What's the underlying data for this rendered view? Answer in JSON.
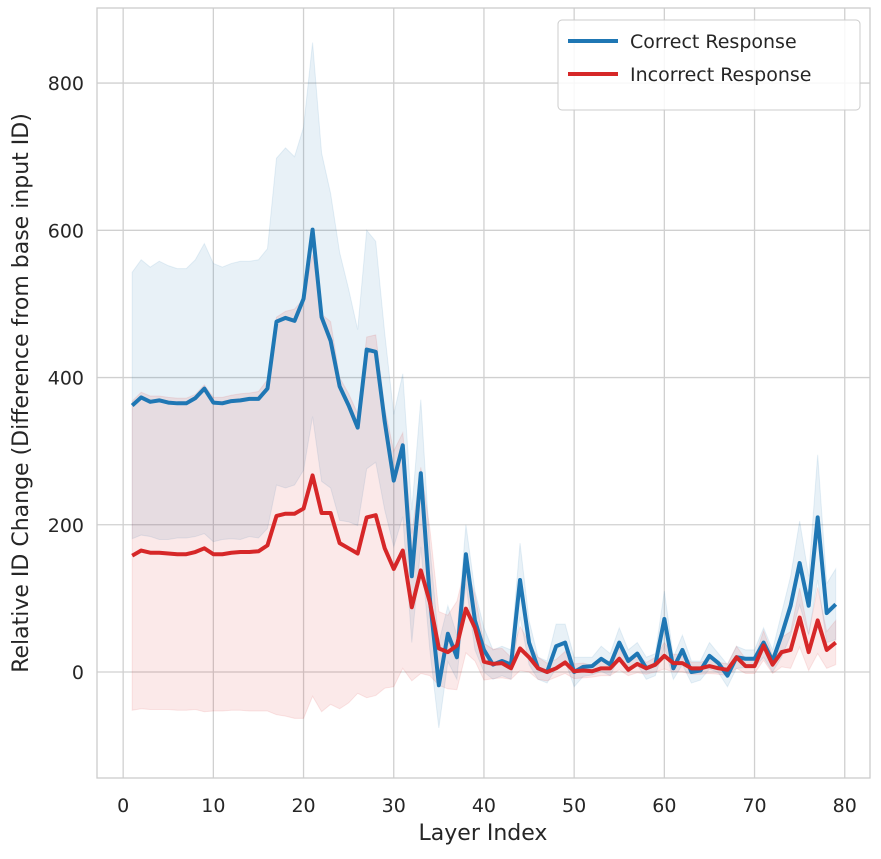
{
  "chart_data": {
    "type": "line",
    "xlabel": "Layer Index",
    "ylabel": "Relative ID Change (Difference from base input ID)",
    "x": [
      1,
      2,
      3,
      4,
      5,
      6,
      7,
      8,
      9,
      10,
      11,
      12,
      13,
      14,
      15,
      16,
      17,
      18,
      19,
      20,
      21,
      22,
      23,
      24,
      25,
      26,
      27,
      28,
      29,
      30,
      31,
      32,
      33,
      34,
      35,
      36,
      37,
      38,
      39,
      40,
      41,
      42,
      43,
      44,
      45,
      46,
      47,
      48,
      49,
      50,
      51,
      52,
      53,
      54,
      55,
      56,
      57,
      58,
      59,
      60,
      61,
      62,
      63,
      64,
      65,
      66,
      67,
      68,
      69,
      70,
      71,
      72,
      73,
      74,
      75,
      76,
      77,
      78,
      79
    ],
    "series": [
      {
        "name": "Correct Response",
        "color": "#1f77b4",
        "values": [
          362,
          373,
          367,
          369,
          366,
          365,
          365,
          372,
          385,
          366,
          365,
          368,
          369,
          371,
          371,
          385,
          476,
          481,
          477,
          507,
          601,
          482,
          450,
          388,
          362,
          332,
          438,
          435,
          340,
          260,
          308,
          130,
          270,
          100,
          -18,
          52,
          20,
          160,
          70,
          30,
          10,
          15,
          10,
          125,
          40,
          5,
          0,
          35,
          40,
          0,
          7,
          8,
          18,
          10,
          40,
          15,
          25,
          5,
          10,
          72,
          5,
          30,
          0,
          2,
          22,
          12,
          -5,
          20,
          18,
          18,
          40,
          15,
          50,
          90,
          148,
          90,
          210,
          80,
          92
        ],
        "errors": [
          181,
          187,
          183,
          189,
          186,
          183,
          183,
          188,
          197,
          189,
          185,
          187,
          189,
          187,
          189,
          190,
          222,
          231,
          223,
          233,
          254,
          223,
          200,
          182,
          158,
          133,
          162,
          150,
          120,
          90,
          97,
          90,
          100,
          70,
          58,
          38,
          30,
          40,
          40,
          30,
          20,
          20,
          20,
          50,
          30,
          15,
          15,
          30,
          25,
          20,
          13,
          12,
          17,
          15,
          20,
          15,
          15,
          15,
          15,
          38,
          15,
          20,
          15,
          13,
          18,
          13,
          15,
          15,
          12,
          12,
          20,
          15,
          30,
          40,
          57,
          40,
          85,
          40,
          48
        ]
      },
      {
        "name": "Incorrect Response",
        "color": "#d62728",
        "values": [
          158,
          165,
          162,
          162,
          161,
          160,
          160,
          163,
          168,
          160,
          160,
          162,
          163,
          163,
          164,
          172,
          212,
          215,
          215,
          222,
          267,
          216,
          216,
          175,
          168,
          161,
          210,
          213,
          168,
          140,
          165,
          88,
          138,
          95,
          32,
          27,
          36,
          86,
          60,
          14,
          11,
          12,
          5,
          32,
          20,
          5,
          0,
          5,
          13,
          1,
          2,
          1,
          5,
          5,
          18,
          3,
          11,
          5,
          10,
          22,
          12,
          12,
          5,
          5,
          8,
          5,
          3,
          20,
          8,
          8,
          36,
          10,
          27,
          30,
          74,
          27,
          70,
          30,
          40
        ],
        "errors": [
          210,
          215,
          213,
          213,
          212,
          212,
          212,
          214,
          222,
          213,
          213,
          214,
          215,
          216,
          217,
          225,
          270,
          275,
          278,
          285,
          300,
          270,
          260,
          225,
          210,
          190,
          245,
          245,
          190,
          160,
          160,
          100,
          140,
          100,
          50,
          50,
          60,
          60,
          45,
          25,
          20,
          20,
          15,
          30,
          20,
          15,
          12,
          12,
          15,
          10,
          10,
          8,
          10,
          10,
          15,
          8,
          12,
          8,
          10,
          18,
          12,
          12,
          8,
          8,
          10,
          8,
          8,
          15,
          10,
          10,
          20,
          12,
          20,
          25,
          40,
          25,
          45,
          25,
          30
        ]
      }
    ],
    "xlim": [
      -2.9,
      82.8
    ],
    "ylim": [
      -144,
      902
    ],
    "xticks": [
      0,
      10,
      20,
      30,
      40,
      50,
      60,
      70,
      80
    ],
    "yticks": [
      0,
      200,
      400,
      600,
      800
    ],
    "grid": true,
    "legend": "upper right"
  }
}
